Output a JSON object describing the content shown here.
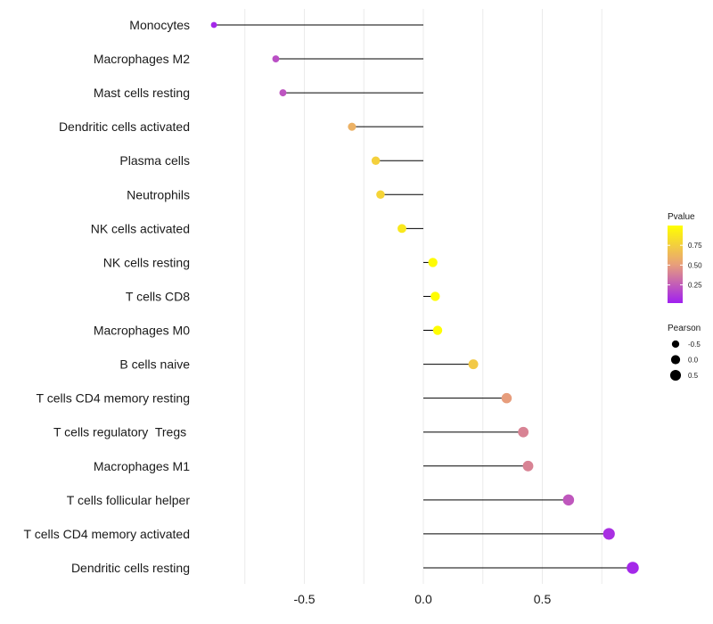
{
  "chart_data": {
    "type": "lollipop",
    "title": "",
    "xlabel": "",
    "ylabel": "",
    "xlim": [
      -1.0,
      0.88
    ],
    "x_ticks": [
      -0.5,
      0.0,
      0.5
    ],
    "x_tick_labels": [
      "-0.5",
      "0.0",
      "0.5"
    ],
    "grid": true,
    "categories": [
      "Monocytes",
      "Macrophages M2",
      "Mast cells resting",
      "Dendritic cells activated",
      "Plasma cells",
      "Neutrophils",
      "NK cells activated",
      "NK cells resting",
      "T cells CD8",
      "Macrophages M0",
      "B cells naive",
      "T cells CD4 memory resting",
      "T cells regulatory  Tregs ",
      "Macrophages M1",
      "T cells follicular helper",
      "T cells CD4 memory activated",
      "Dendritic cells resting"
    ],
    "pearson": [
      -0.88,
      -0.62,
      -0.59,
      -0.3,
      -0.2,
      -0.18,
      -0.09,
      0.04,
      0.05,
      0.06,
      0.21,
      0.35,
      0.42,
      0.44,
      0.61,
      0.78,
      0.88
    ],
    "pvalue": [
      0.05,
      0.2,
      0.22,
      0.6,
      0.76,
      0.78,
      0.88,
      0.98,
      0.99,
      0.99,
      0.72,
      0.5,
      0.4,
      0.4,
      0.23,
      0.08,
      0.05
    ],
    "legend_color": {
      "title": "Pvalue",
      "ticks": [
        0.75,
        0.5,
        0.25
      ],
      "tick_labels": [
        "0.75",
        "0.50",
        "0.25"
      ],
      "range": [
        0.02,
        1.0
      ],
      "color_low": "#a020f0",
      "color_mid": "#e8a07a",
      "color_high": "#ffff00"
    },
    "legend_size": {
      "title": "Pearson",
      "values": [
        -0.5,
        0.0,
        0.5
      ],
      "labels": [
        "-0.5",
        "0.0",
        "0.5"
      ]
    },
    "legend_position": "right"
  }
}
